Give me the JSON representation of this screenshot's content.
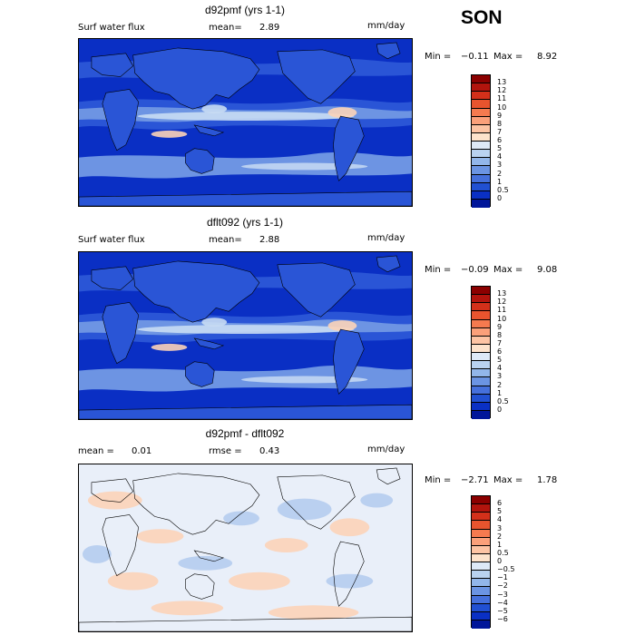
{
  "season": "SON",
  "units": "mm/day",
  "panels": [
    {
      "title": "d92pmf (yrs 1-1)",
      "variable": "Surf water flux",
      "left_label": "",
      "stat_label": "mean=",
      "stat_value": "2.89",
      "min_label": "Min =",
      "min_value": "−0.11",
      "max_label": "Max =",
      "max_value": "8.92",
      "colorbar_levels": [
        "13",
        "12",
        "11",
        "10",
        "9",
        "8",
        "7",
        "6",
        "5",
        "4",
        "3",
        "2",
        "1",
        "0.5",
        "0"
      ],
      "colorbar_colors": [
        "#8b0000",
        "#b2140d",
        "#d3301a",
        "#e8542e",
        "#f57a4f",
        "#fba07a",
        "#fdc4a4",
        "#fde3cc",
        "#dde9f7",
        "#b9d2f0",
        "#92b6ea",
        "#6b94e3",
        "#4570dc",
        "#2150d2",
        "#0a30c4",
        "#00169a"
      ]
    },
    {
      "title": "dflt092 (yrs 1-1)",
      "variable": "Surf water flux",
      "left_label": "",
      "stat_label": "mean=",
      "stat_value": "2.88",
      "min_label": "Min =",
      "min_value": "−0.09",
      "max_label": "Max =",
      "max_value": "9.08",
      "colorbar_levels": [
        "13",
        "12",
        "11",
        "10",
        "9",
        "8",
        "7",
        "6",
        "5",
        "4",
        "3",
        "2",
        "1",
        "0.5",
        "0"
      ],
      "colorbar_colors": [
        "#8b0000",
        "#b2140d",
        "#d3301a",
        "#e8542e",
        "#f57a4f",
        "#fba07a",
        "#fdc4a4",
        "#fde3cc",
        "#dde9f7",
        "#b9d2f0",
        "#92b6ea",
        "#6b94e3",
        "#4570dc",
        "#2150d2",
        "#0a30c4",
        "#00169a"
      ]
    },
    {
      "title": "d92pmf - dflt092",
      "variable": "",
      "left_label": "mean =",
      "left_value": "0.01",
      "stat_label": "rmse =",
      "stat_value": "0.43",
      "min_label": "Min =",
      "min_value": "−2.71",
      "max_label": "Max =",
      "max_value": "1.78",
      "colorbar_levels": [
        "6",
        "5",
        "4",
        "3",
        "2",
        "1",
        "0.5",
        "0",
        "−0.5",
        "−1",
        "−2",
        "−3",
        "−4",
        "−5",
        "−6"
      ],
      "colorbar_colors": [
        "#8b0000",
        "#b2140d",
        "#d3301a",
        "#e8542e",
        "#f57a4f",
        "#fba07a",
        "#fdc4a4",
        "#fde3cc",
        "#dde9f7",
        "#b9d2f0",
        "#92b6ea",
        "#6b94e3",
        "#4570dc",
        "#2150d2",
        "#0a30c4",
        "#00169a"
      ]
    }
  ],
  "map_colors": {
    "ocean_dark": "#0a2fc4",
    "ocean_mid": "#2a55d6",
    "ocean_light": "#6d94e3",
    "band_pale": "#c8dbf3",
    "band_warm": "#fbd3b8",
    "diff_base": "#e9eff9",
    "diff_pos": "#fbd4bc",
    "diff_neg": "#b7cdef",
    "coast": "#000000"
  }
}
